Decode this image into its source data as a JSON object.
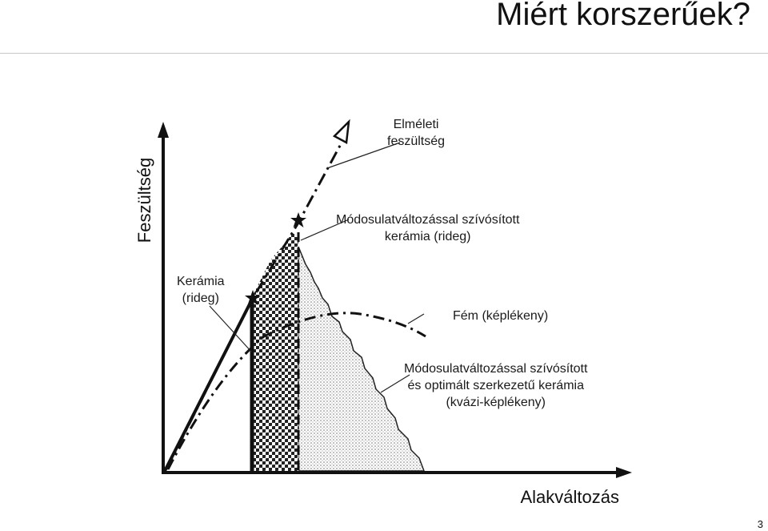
{
  "slide": {
    "title": "Miért korszerűek?",
    "page_number": "3"
  },
  "axes": {
    "y_label": "Feszültség",
    "x_label": "Alakváltozás"
  },
  "annotations": {
    "theoretical": "Elméleti\nfeszültség",
    "modified_brittle": "Módosulatváltozással szívósított\nkerámia (rideg)",
    "ceramic_brittle": "Kerámia\n(rideg)",
    "metal": "Fém (képlékeny)",
    "modified_quasi": "Módosulatváltozással szívósított\nés optimált szerkezetű kerámia\n(kvázi-képlékeny)"
  }
}
